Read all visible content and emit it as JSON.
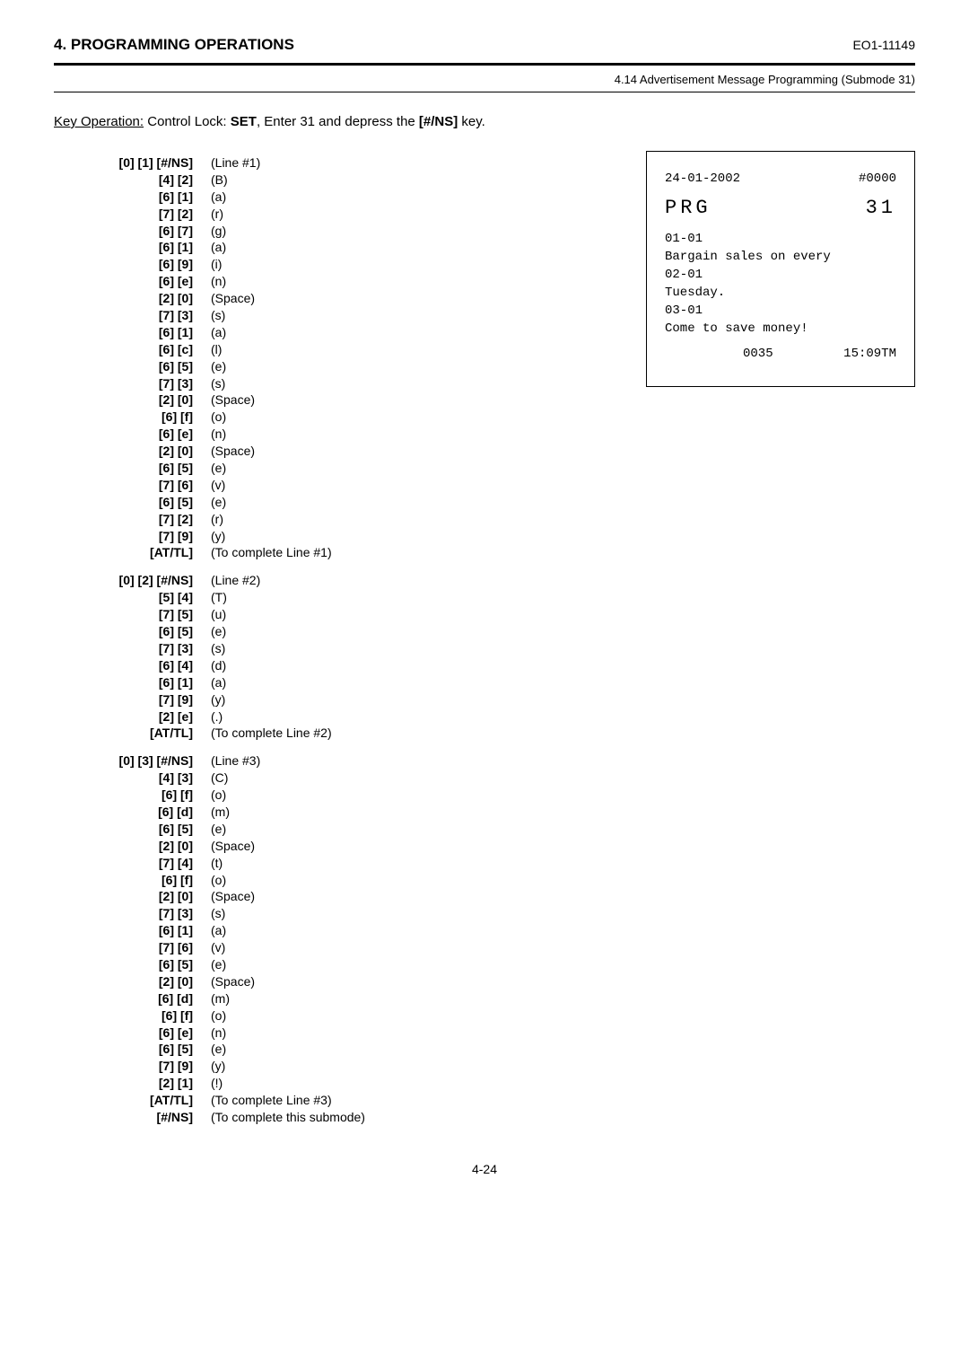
{
  "header": {
    "section_title": "4. PROGRAMMING OPERATIONS",
    "doc_id": "EO1-11149",
    "subheader": "4.14 Advertisement Message Programming (Submode 31)"
  },
  "key_operation": {
    "label": "Key Operation:",
    "text_before": "  Control Lock: ",
    "bold1": "SET",
    "text_mid": ", Enter 31 and depress the ",
    "bold2": "[#/NS]",
    "text_after": " key."
  },
  "blocks": [
    {
      "rows": [
        {
          "k": "[0] [1] [#/NS]",
          "d": "(Line #1)"
        },
        {
          "k": "[4] [2]",
          "d": "(B)"
        },
        {
          "k": "[6] [1]",
          "d": "(a)"
        },
        {
          "k": "[7] [2]",
          "d": "(r)"
        },
        {
          "k": "[6] [7]",
          "d": "(g)"
        },
        {
          "k": "[6] [1]",
          "d": "(a)"
        },
        {
          "k": "[6] [9]",
          "d": "(i)"
        },
        {
          "k": "[6] [e]",
          "d": "(n)"
        },
        {
          "k": "[2] [0]",
          "d": "(Space)"
        },
        {
          "k": "[7] [3]",
          "d": "(s)"
        },
        {
          "k": "[6] [1]",
          "d": "(a)"
        },
        {
          "k": "[6] [c]",
          "d": "(l)"
        },
        {
          "k": "[6] [5]",
          "d": "(e)"
        },
        {
          "k": "[7] [3]",
          "d": "(s)"
        },
        {
          "k": "[2] [0]",
          "d": "(Space)"
        },
        {
          "k": "[6] [f]",
          "d": "(o)"
        },
        {
          "k": "[6] [e]",
          "d": "(n)"
        },
        {
          "k": "[2] [0]",
          "d": "(Space)"
        },
        {
          "k": "[6] [5]",
          "d": "(e)"
        },
        {
          "k": "[7] [6]",
          "d": "(v)"
        },
        {
          "k": "[6] [5]",
          "d": "(e)"
        },
        {
          "k": "[7] [2]",
          "d": "(r)"
        },
        {
          "k": "[7] [9]",
          "d": "(y)"
        },
        {
          "k": "[AT/TL]",
          "d": "(To complete Line #1)"
        }
      ]
    },
    {
      "rows": [
        {
          "k": "[0] [2] [#/NS]",
          "d": "(Line #2)"
        },
        {
          "k": "[5] [4]",
          "d": "(T)"
        },
        {
          "k": "[7] [5]",
          "d": "(u)"
        },
        {
          "k": "[6] [5]",
          "d": "(e)"
        },
        {
          "k": "[7] [3]",
          "d": "(s)"
        },
        {
          "k": "[6] [4]",
          "d": "(d)"
        },
        {
          "k": "[6] [1]",
          "d": "(a)"
        },
        {
          "k": "[7] [9]",
          "d": "(y)"
        },
        {
          "k": "[2] [e]",
          "d": "(.)"
        },
        {
          "k": "[AT/TL]",
          "d": "(To complete Line #2)"
        }
      ]
    },
    {
      "rows": [
        {
          "k": "[0] [3] [#/NS]",
          "d": "(Line #3)"
        },
        {
          "k": "[4] [3]",
          "d": "(C)"
        },
        {
          "k": "[6] [f]",
          "d": "(o)"
        },
        {
          "k": "[6] [d]",
          "d": "(m)"
        },
        {
          "k": "[6] [5]",
          "d": "(e)"
        },
        {
          "k": "[2] [0]",
          "d": "(Space)"
        },
        {
          "k": "[7] [4]",
          "d": "(t)"
        },
        {
          "k": "[6] [f]",
          "d": "(o)"
        },
        {
          "k": "[2] [0]",
          "d": "(Space)"
        },
        {
          "k": "[7] [3]",
          "d": "(s)"
        },
        {
          "k": "[6] [1]",
          "d": "(a)"
        },
        {
          "k": "[7] [6]",
          "d": "(v)"
        },
        {
          "k": "[6] [5]",
          "d": "(e)"
        },
        {
          "k": "[2] [0]",
          "d": "(Space)"
        },
        {
          "k": "[6] [d]",
          "d": "(m)"
        },
        {
          "k": "[6] [f]",
          "d": "(o)"
        },
        {
          "k": "[6] [e]",
          "d": "(n)"
        },
        {
          "k": "[6] [5]",
          "d": "(e)"
        },
        {
          "k": "[7] [9]",
          "d": "(y)"
        },
        {
          "k": "[2] [1]",
          "d": "(!)"
        },
        {
          "k": "[AT/TL]",
          "d": "(To complete Line #3)"
        },
        {
          "k": "[#/NS]",
          "d": "(To complete this submode)"
        }
      ]
    }
  ],
  "receipt": {
    "date": "24-01-2002",
    "consec": "#0000",
    "mode_label": "PRG",
    "mode_num": "31",
    "lines": [
      "01-01",
      "Bargain sales on every",
      "02-01",
      "Tuesday.",
      "03-01",
      "Come to save money!"
    ],
    "seq": "0035",
    "time": "15:09TM"
  },
  "page_number": "4-24"
}
